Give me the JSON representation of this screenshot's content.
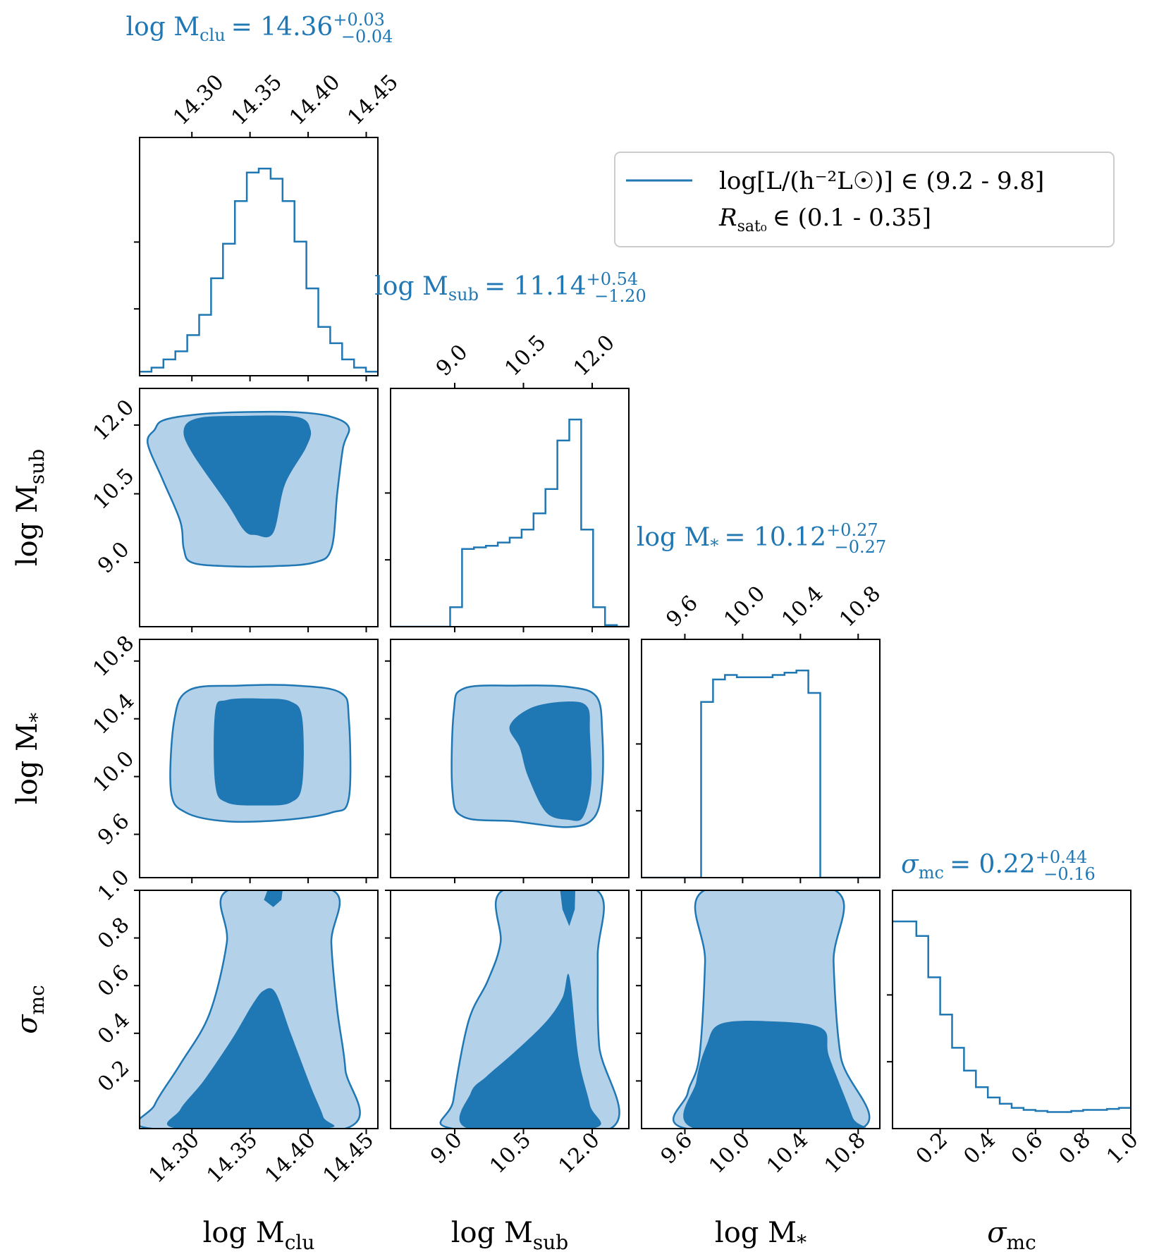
{
  "chart_data": {
    "type": "corner",
    "color": "#1f77b4",
    "fill_dark": "#1f77b4",
    "fill_light": "#b3d1e8",
    "parameters": [
      {
        "key": "mclu",
        "label_main": "log M",
        "label_sub": "clu",
        "range": [
          14.255,
          14.46
        ],
        "ticks": [
          14.3,
          14.35,
          14.4,
          14.45
        ],
        "tick_labels": [
          "14.30",
          "14.35",
          "14.40",
          "14.45"
        ]
      },
      {
        "key": "msub",
        "label_main": "log M",
        "label_sub": "sub",
        "range": [
          7.6,
          12.8
        ],
        "ticks": [
          9.0,
          10.5,
          12.0
        ],
        "tick_labels": [
          "9.0",
          "10.5",
          "12.0"
        ]
      },
      {
        "key": "mstar",
        "label_main": "log M",
        "label_sub": "*",
        "range": [
          9.3,
          10.95
        ],
        "ticks": [
          9.6,
          10.0,
          10.4,
          10.8
        ],
        "tick_labels": [
          "9.6",
          "10.0",
          "10.4",
          "10.8"
        ]
      },
      {
        "key": "sigma",
        "label_main": "σ",
        "label_sub": "mc",
        "range": [
          0.0,
          1.0
        ],
        "ticks": [
          0.2,
          0.4,
          0.6,
          0.8,
          1.0
        ],
        "tick_labels": [
          "0.2",
          "0.4",
          "0.6",
          "0.8",
          "1.0"
        ]
      }
    ],
    "titles": [
      {
        "prefix": "log M",
        "sub": "clu",
        "value": "= 14.36",
        "plus": "+0.03",
        "minus": "−0.04"
      },
      {
        "prefix": "log M",
        "sub": "sub",
        "value": "= 11.14",
        "plus": "+0.54",
        "minus": "−1.20"
      },
      {
        "prefix": "log M",
        "sub": "*",
        "value": "= 10.12",
        "plus": "+0.27",
        "minus": "−0.27"
      },
      {
        "prefix": "σ",
        "sub": "mc",
        "value": "= 0.22",
        "plus": "+0.44",
        "minus": "−0.16"
      }
    ],
    "histograms": [
      {
        "edges": [
          14.255,
          14.26525,
          14.2755,
          14.28575,
          14.296,
          14.30625,
          14.3165,
          14.32675,
          14.337,
          14.34725,
          14.3575,
          14.36775,
          14.378,
          14.38825,
          14.3985,
          14.40875,
          14.419,
          14.42925,
          14.4395,
          14.44975,
          14.46
        ],
        "counts": [
          0.02,
          0.04,
          0.08,
          0.12,
          0.2,
          0.3,
          0.48,
          0.65,
          0.86,
          1.0,
          1.02,
          0.97,
          0.86,
          0.66,
          0.43,
          0.24,
          0.16,
          0.08,
          0.04,
          0.02
        ]
      },
      {
        "edges": [
          7.6,
          7.86,
          8.12,
          8.38,
          8.64,
          8.9,
          9.16,
          9.42,
          9.68,
          9.94,
          10.2,
          10.46,
          10.72,
          10.98,
          11.24,
          11.5,
          11.76,
          12.02,
          12.28,
          12.54,
          12.8
        ],
        "counts": [
          0,
          0,
          0,
          0,
          0,
          0.12,
          0.48,
          0.49,
          0.5,
          0.52,
          0.55,
          0.6,
          0.7,
          0.85,
          1.15,
          1.28,
          0.6,
          0.12,
          0.01,
          0
        ],
        "max_ref": 1.28
      },
      {
        "edges": [
          9.3,
          9.3825,
          9.465,
          9.5475,
          9.63,
          9.7125,
          9.795,
          9.8775,
          9.96,
          10.0425,
          10.125,
          10.2075,
          10.29,
          10.3725,
          10.455,
          10.5375,
          10.62,
          10.7025,
          10.785,
          10.8675,
          10.95
        ],
        "counts": [
          0,
          0,
          0,
          0,
          0,
          0.78,
          0.88,
          0.9,
          0.89,
          0.89,
          0.89,
          0.9,
          0.91,
          0.92,
          0.82,
          0,
          0,
          0,
          0,
          0
        ]
      },
      {
        "edges": [
          0.0,
          0.05,
          0.1,
          0.15,
          0.2,
          0.25,
          0.3,
          0.35,
          0.4,
          0.45,
          0.5,
          0.55,
          0.6,
          0.65,
          0.7,
          0.75,
          0.8,
          0.85,
          0.9,
          0.95,
          1.0
        ],
        "counts": [
          1.0,
          1.0,
          0.93,
          0.73,
          0.55,
          0.39,
          0.28,
          0.2,
          0.15,
          0.12,
          0.1,
          0.09,
          0.085,
          0.08,
          0.08,
          0.085,
          0.09,
          0.09,
          0.095,
          0.1
        ]
      }
    ],
    "contours": [
      {
        "row": 1,
        "col": 0,
        "outer": [
          [
            14.268,
            11.9
          ],
          [
            14.275,
            12.1
          ],
          [
            14.3,
            12.22
          ],
          [
            14.34,
            12.28
          ],
          [
            14.39,
            12.28
          ],
          [
            14.42,
            12.18
          ],
          [
            14.435,
            11.95
          ],
          [
            14.43,
            11.5
          ],
          [
            14.425,
            10.5
          ],
          [
            14.42,
            9.3
          ],
          [
            14.405,
            9.0
          ],
          [
            14.37,
            8.92
          ],
          [
            14.33,
            8.92
          ],
          [
            14.3,
            9.0
          ],
          [
            14.293,
            9.3
          ],
          [
            14.29,
            9.9
          ],
          [
            14.275,
            10.8
          ],
          [
            14.262,
            11.6
          ]
        ],
        "inner": [
          [
            14.293,
            11.9
          ],
          [
            14.305,
            12.15
          ],
          [
            14.34,
            12.2
          ],
          [
            14.39,
            12.18
          ],
          [
            14.402,
            11.9
          ],
          [
            14.398,
            11.5
          ],
          [
            14.38,
            10.7
          ],
          [
            14.37,
            9.65
          ],
          [
            14.355,
            9.6
          ],
          [
            14.345,
            9.7
          ],
          [
            14.33,
            10.3
          ],
          [
            14.3,
            11.4
          ]
        ]
      },
      {
        "row": 2,
        "col": 0,
        "outer": [
          [
            14.285,
            10.4
          ],
          [
            14.298,
            10.6
          ],
          [
            14.34,
            10.63
          ],
          [
            14.39,
            10.63
          ],
          [
            14.428,
            10.58
          ],
          [
            14.435,
            10.4
          ],
          [
            14.435,
            9.85
          ],
          [
            14.42,
            9.75
          ],
          [
            14.38,
            9.7
          ],
          [
            14.33,
            9.69
          ],
          [
            14.295,
            9.75
          ],
          [
            14.282,
            9.9
          ]
        ],
        "inner": [
          [
            14.32,
            10.45
          ],
          [
            14.33,
            10.53
          ],
          [
            14.36,
            10.54
          ],
          [
            14.385,
            10.52
          ],
          [
            14.395,
            10.4
          ],
          [
            14.395,
            9.95
          ],
          [
            14.385,
            9.82
          ],
          [
            14.36,
            9.8
          ],
          [
            14.33,
            9.82
          ],
          [
            14.32,
            9.95
          ]
        ]
      },
      {
        "row": 2,
        "col": 1,
        "outer": [
          [
            8.98,
            10.45
          ],
          [
            9.2,
            10.61
          ],
          [
            10.3,
            10.63
          ],
          [
            11.5,
            10.62
          ],
          [
            12.1,
            10.55
          ],
          [
            12.22,
            10.3
          ],
          [
            12.22,
            9.95
          ],
          [
            12.05,
            9.72
          ],
          [
            11.5,
            9.65
          ],
          [
            10.3,
            9.69
          ],
          [
            9.2,
            9.72
          ],
          [
            8.95,
            9.9
          ]
        ],
        "inner": [
          [
            10.2,
            10.35
          ],
          [
            10.7,
            10.48
          ],
          [
            11.5,
            10.52
          ],
          [
            11.9,
            10.48
          ],
          [
            11.95,
            10.3
          ],
          [
            11.98,
            9.95
          ],
          [
            11.8,
            9.72
          ],
          [
            11.5,
            9.7
          ],
          [
            11.0,
            9.75
          ],
          [
            10.6,
            10.0
          ],
          [
            10.42,
            10.2
          ]
        ]
      },
      {
        "row": 2,
        "col": 2,
        "outer": [],
        "inner": []
      },
      {
        "row": 3,
        "col": 0,
        "outer": [
          [
            14.265,
            0.0
          ],
          [
            14.268,
            0.1
          ],
          [
            14.29,
            0.27
          ],
          [
            14.315,
            0.48
          ],
          [
            14.33,
            0.78
          ],
          [
            14.331,
            1.0
          ],
          [
            14.421,
            1.0
          ],
          [
            14.42,
            0.78
          ],
          [
            14.425,
            0.5
          ],
          [
            14.432,
            0.25
          ],
          [
            14.432,
            0.0
          ]
        ],
        "inner": [
          [
            14.288,
            0.0
          ],
          [
            14.29,
            0.08
          ],
          [
            14.31,
            0.2
          ],
          [
            14.335,
            0.38
          ],
          [
            14.352,
            0.52
          ],
          [
            14.362,
            0.58
          ],
          [
            14.372,
            0.57
          ],
          [
            14.385,
            0.4
          ],
          [
            14.402,
            0.18
          ],
          [
            14.413,
            0.05
          ],
          [
            14.413,
            0.0
          ]
        ],
        "inner2": [
          [
            14.365,
            1.0
          ],
          [
            14.362,
            0.96
          ],
          [
            14.37,
            0.93
          ],
          [
            14.377,
            0.96
          ],
          [
            14.378,
            1.0
          ]
        ]
      },
      {
        "row": 3,
        "col": 1,
        "outer": [
          [
            8.95,
            0.0
          ],
          [
            8.97,
            0.12
          ],
          [
            9.3,
            0.45
          ],
          [
            9.72,
            0.62
          ],
          [
            10.0,
            0.78
          ],
          [
            10.05,
            1.0
          ],
          [
            12.1,
            1.0
          ],
          [
            12.12,
            0.72
          ],
          [
            12.15,
            0.35
          ],
          [
            12.4,
            0.0
          ]
        ],
        "inner": [
          [
            9.3,
            0.0
          ],
          [
            9.35,
            0.15
          ],
          [
            9.7,
            0.22
          ],
          [
            10.3,
            0.32
          ],
          [
            11.0,
            0.45
          ],
          [
            11.35,
            0.55
          ],
          [
            11.5,
            0.64
          ],
          [
            11.7,
            0.3
          ],
          [
            11.95,
            0.1
          ],
          [
            12.0,
            0.0
          ]
        ],
        "inner2": [
          [
            11.3,
            1.0
          ],
          [
            11.35,
            0.92
          ],
          [
            11.5,
            0.85
          ],
          [
            11.62,
            0.92
          ],
          [
            11.63,
            1.0
          ]
        ]
      },
      {
        "row": 3,
        "col": 2,
        "outer": [
          [
            9.61,
            0.0
          ],
          [
            9.62,
            0.15
          ],
          [
            9.7,
            0.3
          ],
          [
            9.74,
            0.7
          ],
          [
            9.735,
            1.0
          ],
          [
            10.64,
            1.0
          ],
          [
            10.63,
            0.7
          ],
          [
            10.68,
            0.3
          ],
          [
            10.82,
            0.0
          ]
        ],
        "inner": [
          [
            9.67,
            0.0
          ],
          [
            9.68,
            0.2
          ],
          [
            9.75,
            0.35
          ],
          [
            9.85,
            0.44
          ],
          [
            10.2,
            0.45
          ],
          [
            10.55,
            0.42
          ],
          [
            10.6,
            0.3
          ],
          [
            10.76,
            0.05
          ],
          [
            10.77,
            0.0
          ]
        ]
      }
    ],
    "legend": {
      "line1": "log[L/(h⁻²L☉)] ∈ (9.2 - 9.8]",
      "line2_main": "R",
      "line2_sub": "sat₀",
      "line2_rest": "∈ (0.1 - 0.35]"
    }
  }
}
